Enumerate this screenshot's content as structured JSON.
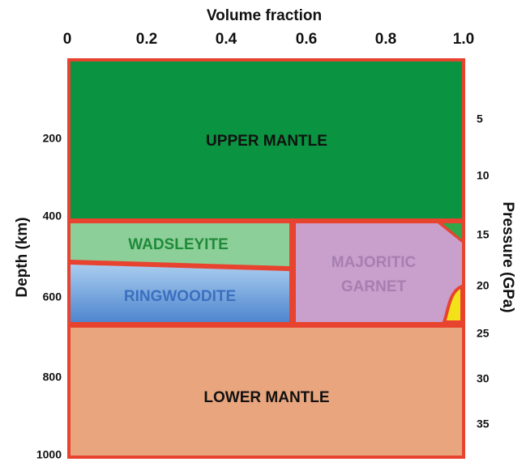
{
  "axes": {
    "top_label": "Volume fraction",
    "left_label": "Depth (km)",
    "right_label": "Pressure (GPa)",
    "top_ticks": [
      "0",
      "0.2",
      "0.4",
      "0.6",
      "0.8",
      "1.0"
    ],
    "left_ticks": [
      "200",
      "400",
      "600",
      "800",
      "1000"
    ],
    "right_ticks": [
      "5",
      "10",
      "15",
      "20",
      "25",
      "30",
      "35"
    ]
  },
  "regions": {
    "upper_mantle": "UPPER MANTLE",
    "wadsleyite": "WADSLEYITE",
    "ringwoodite": "RINGWOODITE",
    "majoritic_garnet": [
      "MAJORITIC",
      "GARNET"
    ],
    "lower_mantle": "LOWER MANTLE"
  }
}
